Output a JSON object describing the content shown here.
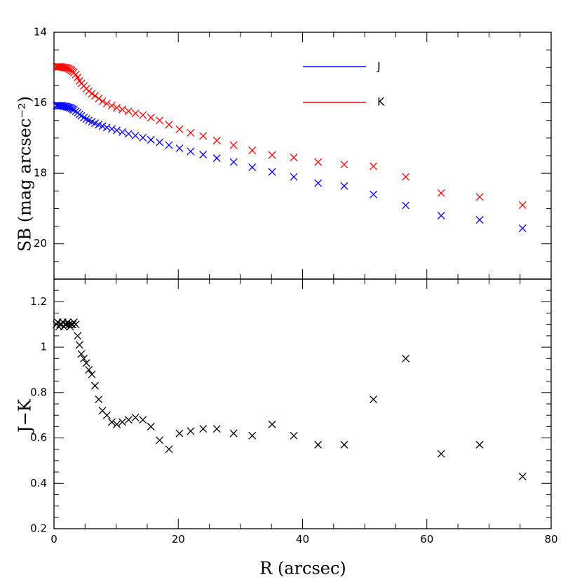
{
  "chart_data": [
    {
      "type": "scatter",
      "panel": "top",
      "title": "",
      "xlabel": "",
      "ylabel": "SB (mag arcsec⁻²)",
      "xlim": [
        0,
        80
      ],
      "ylim": [
        21,
        14
      ],
      "y_inverted": true,
      "xticks": [
        0,
        20,
        40,
        60,
        80
      ],
      "yticks": [
        14,
        16,
        18,
        20
      ],
      "marker": "x",
      "legend_position": "top-right",
      "series": [
        {
          "name": "J",
          "color": "#0000ff",
          "x": [
            0.4,
            0.6,
            0.8,
            1.0,
            1.2,
            1.4,
            1.6,
            1.8,
            2.0,
            2.2,
            2.4,
            2.6,
            2.8,
            3.0,
            3.2,
            3.5,
            3.8,
            4.1,
            4.4,
            4.8,
            5.2,
            5.6,
            6.1,
            6.6,
            7.2,
            7.8,
            8.5,
            9.3,
            10.1,
            11.0,
            12.0,
            13.1,
            14.3,
            15.6,
            17.0,
            18.5,
            20.2,
            22.0,
            24.0,
            26.2,
            28.9,
            31.9,
            35.1,
            38.6,
            42.5,
            46.7,
            51.4,
            56.6,
            62.3,
            68.5,
            75.4
          ],
          "y": [
            16.08,
            16.08,
            16.09,
            16.09,
            16.08,
            16.09,
            16.1,
            16.1,
            16.11,
            16.12,
            16.13,
            16.14,
            16.16,
            16.18,
            16.2,
            16.24,
            16.28,
            16.33,
            16.37,
            16.42,
            16.46,
            16.5,
            16.54,
            16.58,
            16.62,
            16.66,
            16.7,
            16.74,
            16.78,
            16.83,
            16.88,
            16.93,
            16.99,
            17.05,
            17.12,
            17.2,
            17.29,
            17.38,
            17.47,
            17.57,
            17.68,
            17.83,
            17.96,
            18.1,
            18.28,
            18.36,
            18.6,
            18.91,
            19.2,
            19.32,
            19.56
          ]
        },
        {
          "name": "K",
          "color": "#ff0000",
          "x": [
            0.4,
            0.6,
            0.8,
            1.0,
            1.2,
            1.4,
            1.6,
            1.8,
            2.0,
            2.2,
            2.4,
            2.6,
            2.8,
            3.0,
            3.2,
            3.5,
            3.8,
            4.1,
            4.4,
            4.8,
            5.2,
            5.6,
            6.1,
            6.6,
            7.2,
            7.8,
            8.5,
            9.3,
            10.1,
            11.0,
            12.0,
            13.1,
            14.3,
            15.6,
            17.0,
            18.5,
            20.2,
            22.0,
            24.0,
            26.2,
            28.9,
            31.9,
            35.1,
            38.6,
            42.5,
            46.7,
            51.4,
            56.6,
            62.3,
            68.5,
            75.4
          ],
          "y": [
            14.98,
            14.98,
            14.98,
            14.98,
            14.98,
            14.99,
            15.0,
            15.0,
            15.01,
            15.02,
            15.04,
            15.06,
            15.08,
            15.11,
            15.14,
            15.2,
            15.28,
            15.38,
            15.45,
            15.52,
            15.6,
            15.67,
            15.74,
            15.8,
            15.88,
            15.96,
            16.02,
            16.08,
            16.14,
            16.19,
            16.24,
            16.3,
            16.35,
            16.42,
            16.5,
            16.62,
            16.75,
            16.85,
            16.94,
            17.07,
            17.2,
            17.35,
            17.48,
            17.55,
            17.68,
            17.75,
            17.8,
            18.1,
            18.56,
            18.67,
            18.9
          ]
        }
      ]
    },
    {
      "type": "scatter",
      "panel": "bottom",
      "title": "",
      "xlabel": "R (arcsec)",
      "ylabel": "J−K",
      "xlim": [
        0,
        80
      ],
      "ylim": [
        0.2,
        1.3
      ],
      "xticks": [
        0,
        20,
        40,
        60,
        80
      ],
      "yticks": [
        0.2,
        0.4,
        0.6,
        0.8,
        1,
        1.2
      ],
      "ytick_labels": [
        "0.2",
        "0.4",
        "0.6",
        "0.8",
        "1",
        "1.2"
      ],
      "marker": "x",
      "series": [
        {
          "color": "#000000",
          "x": [
            0.4,
            0.6,
            0.8,
            1.0,
            1.2,
            1.4,
            1.6,
            1.8,
            2.0,
            2.2,
            2.4,
            2.6,
            2.8,
            3.0,
            3.2,
            3.5,
            3.8,
            4.1,
            4.4,
            4.8,
            5.2,
            5.6,
            6.1,
            6.6,
            7.2,
            7.8,
            8.5,
            9.3,
            10.1,
            11.0,
            12.0,
            13.1,
            14.3,
            15.6,
            17.0,
            18.5,
            20.2,
            22.0,
            24.0,
            26.2,
            28.9,
            31.9,
            35.1,
            38.6,
            42.5,
            46.7,
            51.4,
            56.6,
            62.3,
            68.5,
            75.4
          ],
          "y": [
            1.1,
            1.11,
            1.09,
            1.1,
            1.1,
            1.11,
            1.09,
            1.1,
            1.1,
            1.11,
            1.1,
            1.09,
            1.1,
            1.1,
            1.11,
            1.1,
            1.05,
            1.01,
            0.97,
            0.95,
            0.93,
            0.9,
            0.88,
            0.83,
            0.77,
            0.72,
            0.7,
            0.67,
            0.66,
            0.67,
            0.68,
            0.69,
            0.68,
            0.65,
            0.59,
            0.55,
            0.62,
            0.63,
            0.64,
            0.64,
            0.62,
            0.61,
            0.66,
            0.61,
            0.57,
            0.57,
            0.77,
            0.95,
            0.53,
            0.57,
            0.43
          ]
        }
      ]
    }
  ],
  "legend": {
    "entries": [
      {
        "label": "J",
        "color": "#0000ff"
      },
      {
        "label": "K",
        "color": "#ff0000"
      }
    ]
  }
}
